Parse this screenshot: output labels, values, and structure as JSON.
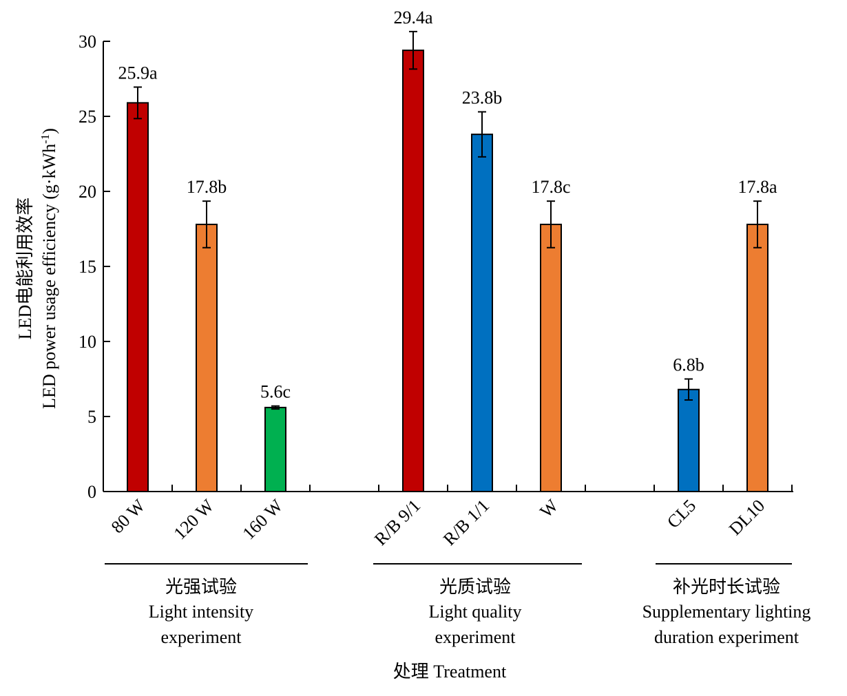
{
  "chart_data": {
    "type": "bar",
    "ylabel_cn": "LED电能利用效率",
    "ylabel_en": "LED power usage efficiency (g·kWh",
    "ylabel_unit_sup": "-1",
    "ylabel_unit_close": ")",
    "xlabel": "处理 Treatment",
    "ylim": [
      0,
      30
    ],
    "yticks": [
      0,
      5,
      10,
      15,
      20,
      25,
      30
    ],
    "grid": false,
    "colors": {
      "red": "#c00000",
      "orange": "#ed7d31",
      "green": "#00b050",
      "blue": "#0070c0"
    },
    "groups": [
      {
        "name_cn": "光强试验",
        "name_en_line1": "Light intensity",
        "name_en_line2": "experiment",
        "bars": [
          {
            "category": "80 W",
            "value": 25.9,
            "error": 1.05,
            "label": "25.9a",
            "color": "#c00000"
          },
          {
            "category": "120 W",
            "value": 17.8,
            "error": 1.55,
            "label": "17.8b",
            "color": "#ed7d31"
          },
          {
            "category": "160 W",
            "value": 5.6,
            "error": 0.1,
            "label": "5.6c",
            "color": "#00b050"
          }
        ]
      },
      {
        "name_cn": "光质试验",
        "name_en_line1": "Light quality",
        "name_en_line2": "experiment",
        "bars": [
          {
            "category": "R/B 9/1",
            "value": 29.4,
            "error": 1.25,
            "label": "29.4a",
            "color": "#c00000"
          },
          {
            "category": "R/B 1/1",
            "value": 23.8,
            "error": 1.5,
            "label": "23.8b",
            "color": "#0070c0"
          },
          {
            "category": "W",
            "value": 17.8,
            "error": 1.55,
            "label": "17.8c",
            "color": "#ed7d31"
          }
        ]
      },
      {
        "name_cn": "补光时长试验",
        "name_en_line1": "Supplementary lighting",
        "name_en_line2": "duration experiment",
        "bars": [
          {
            "category": "CL5",
            "value": 6.8,
            "error": 0.7,
            "label": "6.8b",
            "color": "#0070c0"
          },
          {
            "category": "DL10",
            "value": 17.8,
            "error": 1.55,
            "label": "17.8a",
            "color": "#ed7d31"
          }
        ]
      }
    ]
  }
}
